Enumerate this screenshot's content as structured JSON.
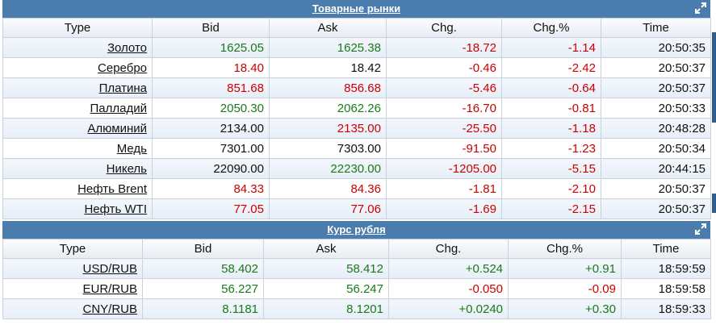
{
  "colors": {
    "header_bg": "#4a7cad",
    "positive": "#1a7a1a",
    "negative": "#cc0000",
    "neutral": "#111111"
  },
  "icons": {
    "expand": "expand-icon"
  },
  "commodities": {
    "title": "Товарные рынки",
    "columns": [
      "Type",
      "Bid",
      "Ask",
      "Chg.",
      "Chg.%",
      "Time"
    ],
    "rows": [
      {
        "name": "Золото",
        "bid": "1625.05",
        "bid_dir": "pos",
        "ask": "1625.38",
        "ask_dir": "pos",
        "chg": "-18.72",
        "chg_pct": "-1.14",
        "change_dir": "neg",
        "time": "20:50:35"
      },
      {
        "name": "Серебро",
        "bid": "18.40",
        "bid_dir": "neg",
        "ask": "18.42",
        "ask_dir": "neu",
        "chg": "-0.46",
        "chg_pct": "-2.42",
        "change_dir": "neg",
        "time": "20:50:37"
      },
      {
        "name": "Платина",
        "bid": "851.68",
        "bid_dir": "neg",
        "ask": "856.68",
        "ask_dir": "neg",
        "chg": "-5.46",
        "chg_pct": "-0.64",
        "change_dir": "neg",
        "time": "20:50:37"
      },
      {
        "name": "Палладий",
        "bid": "2050.30",
        "bid_dir": "pos",
        "ask": "2062.26",
        "ask_dir": "pos",
        "chg": "-16.70",
        "chg_pct": "-0.81",
        "change_dir": "neg",
        "time": "20:50:33"
      },
      {
        "name": "Алюминий",
        "bid": "2134.00",
        "bid_dir": "neu",
        "ask": "2135.00",
        "ask_dir": "neg",
        "chg": "-25.50",
        "chg_pct": "-1.18",
        "change_dir": "neg",
        "time": "20:48:28"
      },
      {
        "name": "Медь",
        "bid": "7301.00",
        "bid_dir": "neu",
        "ask": "7303.00",
        "ask_dir": "neu",
        "chg": "-91.50",
        "chg_pct": "-1.23",
        "change_dir": "neg",
        "time": "20:50:34"
      },
      {
        "name": "Никель",
        "bid": "22090.00",
        "bid_dir": "neu",
        "ask": "22230.00",
        "ask_dir": "pos",
        "chg": "-1205.00",
        "chg_pct": "-5.15",
        "change_dir": "neg",
        "time": "20:44:15"
      },
      {
        "name": "Нефть Brent",
        "bid": "84.33",
        "bid_dir": "neg",
        "ask": "84.36",
        "ask_dir": "neg",
        "chg": "-1.81",
        "chg_pct": "-2.10",
        "change_dir": "neg",
        "time": "20:50:37"
      },
      {
        "name": "Нефть WTI",
        "bid": "77.05",
        "bid_dir": "neg",
        "ask": "77.06",
        "ask_dir": "neg",
        "chg": "-1.69",
        "chg_pct": "-2.15",
        "change_dir": "neg",
        "time": "20:50:37"
      }
    ]
  },
  "rub": {
    "title": "Курс рубля",
    "columns": [
      "Type",
      "Bid",
      "Ask",
      "Chg.",
      "Chg.%",
      "Time"
    ],
    "rows": [
      {
        "name": "USD/RUB",
        "bid": "58.402",
        "bid_dir": "pos",
        "ask": "58.412",
        "ask_dir": "pos",
        "chg": "+0.524",
        "chg_pct": "+0.91",
        "change_dir": "pos",
        "time": "18:59:59"
      },
      {
        "name": "EUR/RUB",
        "bid": "56.227",
        "bid_dir": "pos",
        "ask": "56.247",
        "ask_dir": "pos",
        "chg": "-0.050",
        "chg_pct": "-0.09",
        "change_dir": "neg",
        "time": "18:59:58"
      },
      {
        "name": "CNY/RUB",
        "bid": "8.1181",
        "bid_dir": "pos",
        "ask": "8.1201",
        "ask_dir": "pos",
        "chg": "+0.0240",
        "chg_pct": "+0.30",
        "change_dir": "pos",
        "time": "18:59:33"
      }
    ]
  }
}
